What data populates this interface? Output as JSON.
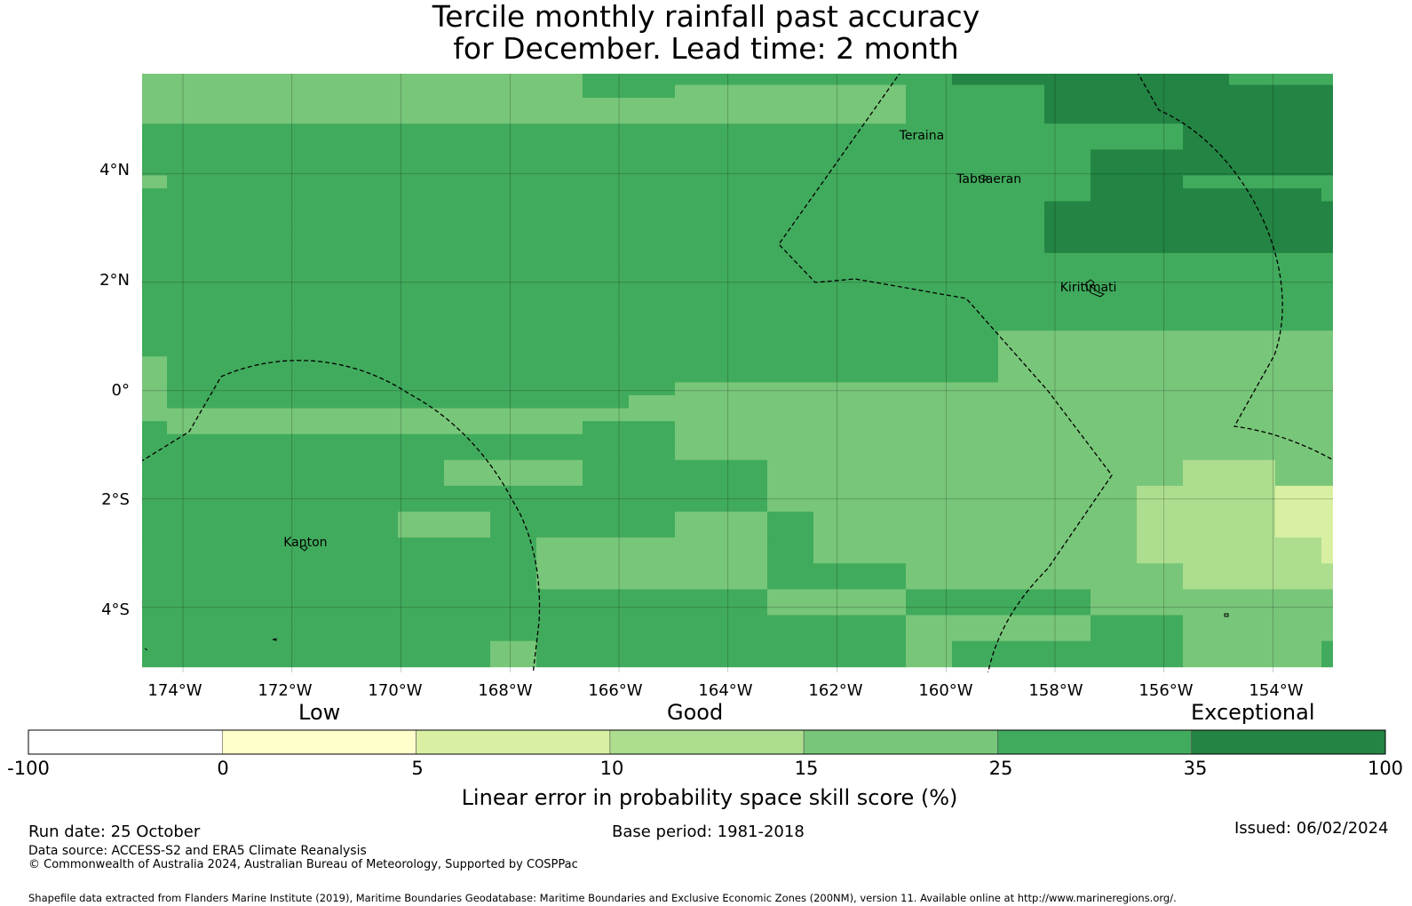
{
  "title": {
    "line1": "Tercile monthly rainfall past accuracy",
    "line2": "for December. Lead time: 2 month"
  },
  "map": {
    "lon_range": [
      -174.75,
      -152.9
    ],
    "lat_range": [
      -5.2,
      5.85
    ],
    "lat_labels": [
      "4°N",
      "2°N",
      "0°",
      "2°S",
      "4°S"
    ],
    "lon_labels": [
      "174°W",
      "172°W",
      "170°W",
      "168°W",
      "166°W",
      "164°W",
      "162°W",
      "160°W",
      "158°W",
      "156°W",
      "154°W"
    ],
    "islands": [
      {
        "name": "Teraina",
        "lon": -160.4,
        "lat": 4.68
      },
      {
        "name": "Tabuaeran",
        "lon": -159.35,
        "lat": 3.88
      },
      {
        "name": "Kiritimati",
        "lon": -157.45,
        "lat": 1.88
      },
      {
        "name": "Kanton",
        "lon": -171.7,
        "lat": -2.83
      }
    ],
    "boundary": "Maritime boundaries / Exclusive Economic Zones (200NM) shown as dashed lines",
    "skill_grid_note": "Cells are 0.833° lon × 0.556° lat; values are the colour class index (0=-100..0, 1=0..5, 2=5..10, 3=10..15, 4=15..25, 5=25..35, 6=35..100)"
  },
  "colorbar": {
    "categories": [
      "Low",
      "Good",
      "Exceptional"
    ],
    "ticks": [
      "-100",
      "0",
      "5",
      "10",
      "15",
      "25",
      "35",
      "100"
    ],
    "colors": [
      "#ffffff",
      "#ffffcc",
      "#d9f0a3",
      "#addd8e",
      "#78c679",
      "#41ab5d",
      "#238443"
    ],
    "label": "Linear error in probability space skill score (%)"
  },
  "footer": {
    "run_date": "Run date: 25 October",
    "base_period": "Base period: 1981-2018",
    "issued": "Issued: 06/02/2024",
    "data_source": "Data source: ACCESS-S2 and ERA5 Climate Reanalysis",
    "copyright": "© Commonwealth of Australia 2024, Australian Bureau of Meteorology, Supported by COSPPac",
    "shapefile": "Shapefile data extracted from Flanders Marine Institute (2019), Maritime Boundaries Geodatabase: Maritime Boundaries and Exclusive Economic Zones (200NM), version 11. Available online at http://www.marineregions.org/."
  }
}
